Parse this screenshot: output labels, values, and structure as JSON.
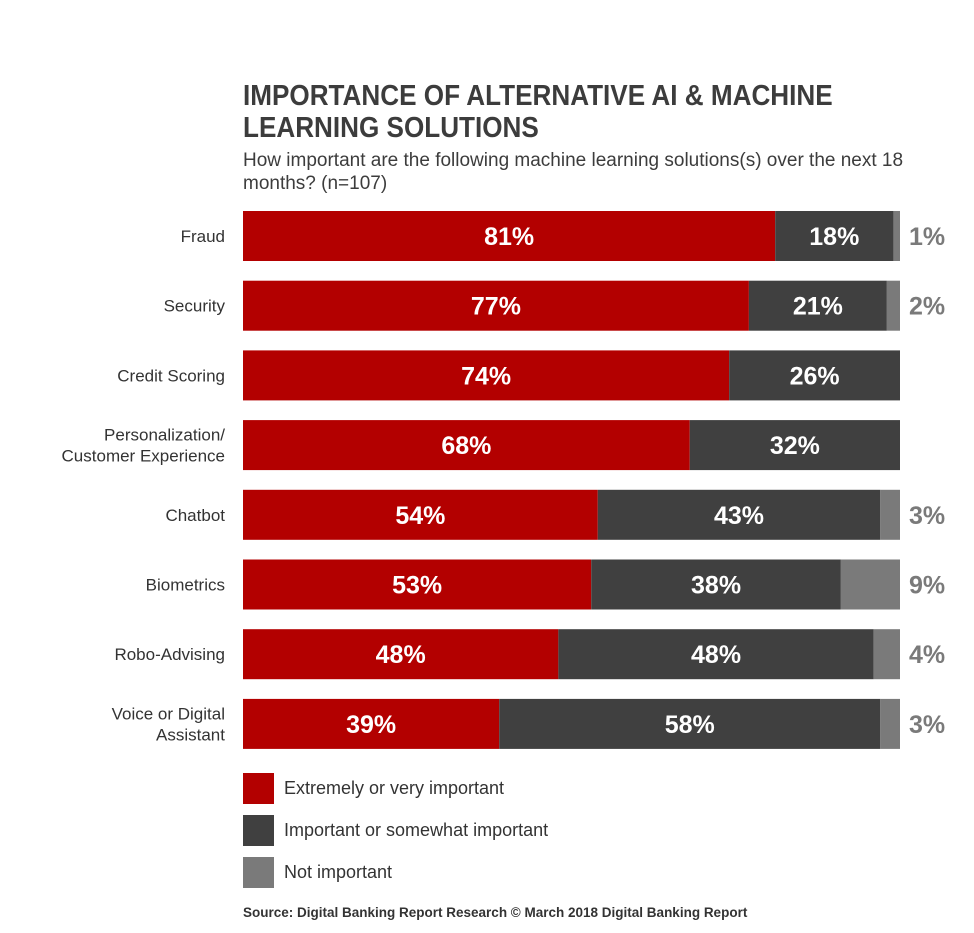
{
  "title": "IMPORTANCE OF ALTERNATIVE AI & MACHINE LEARNING SOLUTIONS",
  "subtitle": "How important are the following machine learning solutions(s) over the next 18 months? (n=107)",
  "source": "Source: Digital Banking Report Research © March 2018 Digital Banking Report",
  "colors": {
    "extremely": "#b30000",
    "important": "#404040",
    "not_important": "#7a7a7a"
  },
  "legend": [
    {
      "label": "Extremely or very important",
      "color": "#b30000"
    },
    {
      "label": "Important or somewhat important",
      "color": "#404040"
    },
    {
      "label": "Not important",
      "color": "#7a7a7a"
    }
  ],
  "chart_data": {
    "type": "bar",
    "orientation": "horizontal",
    "stacked": true,
    "categories": [
      "Fraud",
      "Security",
      "Credit Scoring",
      "Personalization/\nCustomer Experience",
      "Chatbot",
      "Biometrics",
      "Robo-Advising",
      "Voice or Digital\nAssistant"
    ],
    "series": [
      {
        "name": "Extremely or very important",
        "values": [
          81,
          77,
          74,
          68,
          54,
          53,
          48,
          39
        ],
        "labels": [
          "81%",
          "77%",
          "74%",
          "68%",
          "54%",
          "53%",
          "48%",
          "39%"
        ]
      },
      {
        "name": "Important or somewhat important",
        "values": [
          18,
          21,
          26,
          32,
          43,
          38,
          48,
          58
        ],
        "labels": [
          "18%",
          "21%",
          "26%",
          "32%",
          "43%",
          "38%",
          "48%",
          "58%"
        ]
      },
      {
        "name": "Not important",
        "values": [
          1,
          2,
          0,
          0,
          3,
          9,
          4,
          3
        ],
        "labels": [
          "1%",
          "2%",
          "",
          "",
          "3%",
          "9%",
          "4%",
          "3%"
        ]
      }
    ],
    "xlim": [
      0,
      100
    ],
    "grid": false,
    "legend_position": "bottom-left"
  }
}
